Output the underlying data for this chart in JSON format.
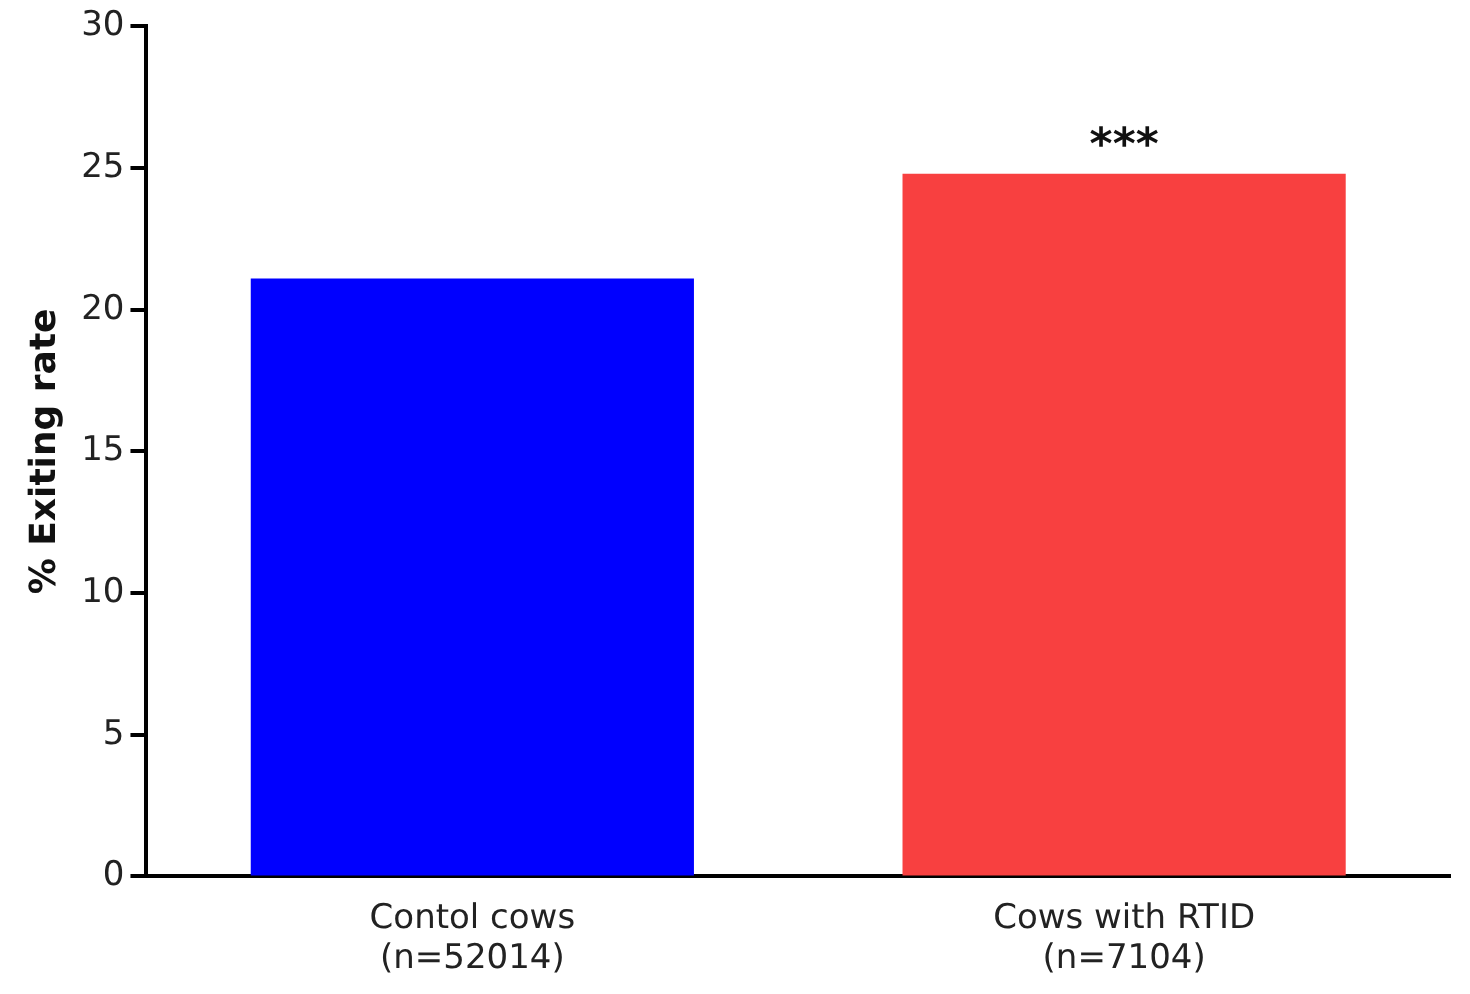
{
  "chart_data": {
    "type": "bar",
    "ylabel": "% Exiting rate",
    "categories": [
      "Contol cows\n(n=52014)",
      "Cows with RTID\n(n=7104)"
    ],
    "values": [
      21.1,
      24.8
    ],
    "colors": [
      "#0000ff",
      "#f84040"
    ],
    "ylim": [
      0,
      30
    ],
    "yticks": [
      0,
      5,
      10,
      15,
      20,
      25,
      30
    ],
    "grid": false,
    "legend": false,
    "annotations": [
      {
        "text": "***",
        "x": "Cows with RTID\n(n=7104)",
        "y": 24.8
      }
    ]
  }
}
